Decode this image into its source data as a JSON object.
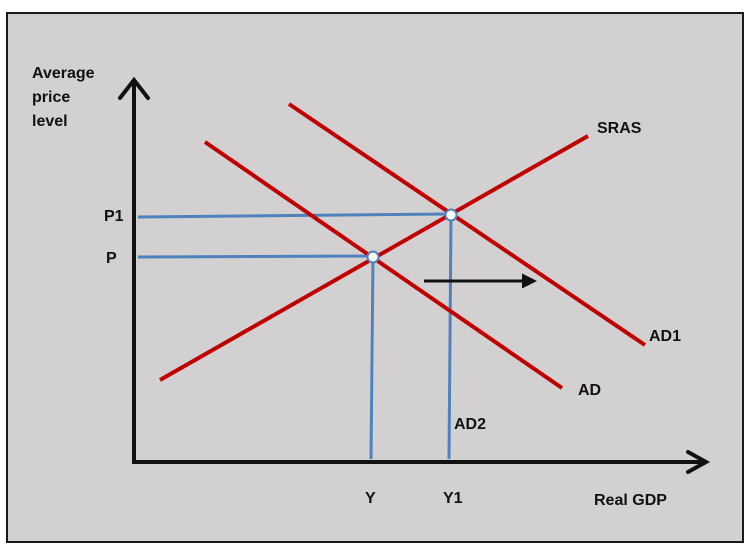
{
  "diagram": {
    "y_axis_label_lines": [
      "Average",
      "price",
      "level"
    ],
    "x_axis_label": "Real GDP",
    "curves": {
      "sras": "SRAS",
      "ad": "AD",
      "ad1": "AD1",
      "ad2": "AD2"
    },
    "price_ticks": {
      "p1": "P1",
      "p": "P"
    },
    "output_ticks": {
      "y": "Y",
      "y1": "Y1"
    },
    "colors": {
      "curve": "#c00000",
      "guide": "#4f81bd",
      "axis": "#111111",
      "background": "#d3d0d1"
    }
  }
}
